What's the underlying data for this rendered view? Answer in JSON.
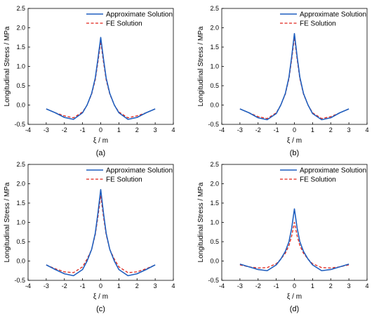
{
  "colors": {
    "approx": "#1f5fbf",
    "fe": "#e0251b",
    "axis": "#000000",
    "background": "#ffffff"
  },
  "chart_data": [
    {
      "type": "line",
      "panel_label": "(a)",
      "xlabel": "ξ / m",
      "ylabel": "Longitudinal Stress / MPa",
      "xlim": [
        -4,
        4
      ],
      "ylim": [
        -0.5,
        2.5
      ],
      "xticks": [
        -4,
        -3,
        -2,
        -1,
        0,
        1,
        2,
        3,
        4
      ],
      "yticks": [
        -0.5,
        0.0,
        0.5,
        1.0,
        1.5,
        2.0,
        2.5
      ],
      "grid": false,
      "legend_position": "top-right",
      "series": [
        {
          "name": "Approximate Solution",
          "style": "solid",
          "x": [
            -3,
            -2.5,
            -2,
            -1.5,
            -1,
            -0.75,
            -0.5,
            -0.3,
            -0.15,
            0,
            0.15,
            0.3,
            0.5,
            0.75,
            1,
            1.5,
            2,
            2.5,
            3
          ],
          "y": [
            -0.1,
            -0.2,
            -0.32,
            -0.37,
            -0.2,
            0.0,
            0.3,
            0.7,
            1.2,
            1.75,
            1.2,
            0.7,
            0.3,
            0.0,
            -0.2,
            -0.37,
            -0.32,
            -0.2,
            -0.1
          ]
        },
        {
          "name": "FE Solution",
          "style": "dashed",
          "x": [
            -3,
            -2.5,
            -2,
            -1.5,
            -1,
            -0.75,
            -0.5,
            -0.3,
            -0.15,
            0,
            0.15,
            0.3,
            0.5,
            0.75,
            1,
            1.5,
            2,
            2.5,
            3
          ],
          "y": [
            -0.1,
            -0.2,
            -0.28,
            -0.33,
            -0.18,
            0.0,
            0.28,
            0.65,
            1.12,
            1.65,
            1.12,
            0.65,
            0.28,
            0.0,
            -0.18,
            -0.33,
            -0.28,
            -0.2,
            -0.1
          ]
        }
      ]
    },
    {
      "type": "line",
      "panel_label": "(b)",
      "xlabel": "ξ / m",
      "ylabel": "Longitudinal Stress / MPa",
      "xlim": [
        -4,
        4
      ],
      "ylim": [
        -0.5,
        2.5
      ],
      "xticks": [
        -4,
        -3,
        -2,
        -1,
        0,
        1,
        2,
        3,
        4
      ],
      "yticks": [
        -0.5,
        0.0,
        0.5,
        1.0,
        1.5,
        2.0,
        2.5
      ],
      "grid": false,
      "legend_position": "top-right",
      "series": [
        {
          "name": "Approximate Solution",
          "style": "solid",
          "x": [
            -3,
            -2.5,
            -2,
            -1.5,
            -1,
            -0.75,
            -0.5,
            -0.3,
            -0.15,
            0,
            0.15,
            0.3,
            0.5,
            0.75,
            1,
            1.5,
            2,
            2.5,
            3
          ],
          "y": [
            -0.1,
            -0.2,
            -0.33,
            -0.38,
            -0.22,
            0.0,
            0.3,
            0.72,
            1.25,
            1.85,
            1.25,
            0.72,
            0.3,
            0.0,
            -0.22,
            -0.38,
            -0.33,
            -0.2,
            -0.1
          ]
        },
        {
          "name": "FE Solution",
          "style": "dashed",
          "x": [
            -3,
            -2.5,
            -2,
            -1.5,
            -1,
            -0.75,
            -0.5,
            -0.3,
            -0.15,
            0,
            0.15,
            0.3,
            0.5,
            0.75,
            1,
            1.5,
            2,
            2.5,
            3
          ],
          "y": [
            -0.1,
            -0.2,
            -0.3,
            -0.35,
            -0.2,
            0.0,
            0.28,
            0.68,
            1.18,
            1.75,
            1.18,
            0.68,
            0.28,
            0.0,
            -0.2,
            -0.35,
            -0.3,
            -0.2,
            -0.1
          ]
        }
      ]
    },
    {
      "type": "line",
      "panel_label": "(c)",
      "xlabel": "ξ / m",
      "ylabel": "Longitudinal Stress / MPa",
      "xlim": [
        -4,
        4
      ],
      "ylim": [
        -0.5,
        2.5
      ],
      "xticks": [
        -4,
        -3,
        -2,
        -1,
        0,
        1,
        2,
        3,
        4
      ],
      "yticks": [
        -0.5,
        0.0,
        0.5,
        1.0,
        1.5,
        2.0,
        2.5
      ],
      "grid": false,
      "legend_position": "top-right",
      "series": [
        {
          "name": "Approximate Solution",
          "style": "solid",
          "x": [
            -3,
            -2.5,
            -2,
            -1.5,
            -1,
            -0.75,
            -0.5,
            -0.3,
            -0.15,
            0,
            0.15,
            0.3,
            0.5,
            0.75,
            1,
            1.5,
            2,
            2.5,
            3
          ],
          "y": [
            -0.1,
            -0.22,
            -0.33,
            -0.38,
            -0.22,
            0.0,
            0.3,
            0.72,
            1.25,
            1.85,
            1.25,
            0.72,
            0.3,
            0.0,
            -0.22,
            -0.38,
            -0.33,
            -0.22,
            -0.1
          ]
        },
        {
          "name": "FE Solution",
          "style": "dashed",
          "x": [
            -3,
            -2.5,
            -2,
            -1.5,
            -1,
            -0.75,
            -0.5,
            -0.3,
            -0.15,
            0,
            0.15,
            0.3,
            0.5,
            0.75,
            1,
            1.5,
            2,
            2.5,
            3
          ],
          "y": [
            -0.1,
            -0.2,
            -0.28,
            -0.3,
            -0.15,
            0.05,
            0.3,
            0.68,
            1.15,
            1.7,
            1.15,
            0.68,
            0.3,
            0.05,
            -0.15,
            -0.3,
            -0.28,
            -0.2,
            -0.1
          ]
        }
      ]
    },
    {
      "type": "line",
      "panel_label": "(d)",
      "xlabel": "ξ / m",
      "ylabel": "Longitudinal Stress / MPa",
      "xlim": [
        -4,
        4
      ],
      "ylim": [
        -0.5,
        2.5
      ],
      "xticks": [
        -4,
        -3,
        -2,
        -1,
        0,
        1,
        2,
        3,
        4
      ],
      "yticks": [
        -0.5,
        0.0,
        0.5,
        1.0,
        1.5,
        2.0,
        2.5
      ],
      "grid": false,
      "legend_position": "top-right",
      "series": [
        {
          "name": "Approximate Solution",
          "style": "solid",
          "x": [
            -3,
            -2.5,
            -2,
            -1.5,
            -1,
            -0.75,
            -0.5,
            -0.3,
            -0.15,
            0,
            0.15,
            0.3,
            0.5,
            0.75,
            1,
            1.5,
            2,
            2.5,
            3
          ],
          "y": [
            -0.08,
            -0.15,
            -0.22,
            -0.25,
            -0.1,
            0.05,
            0.25,
            0.5,
            0.85,
            1.35,
            0.85,
            0.5,
            0.25,
            0.05,
            -0.1,
            -0.25,
            -0.22,
            -0.15,
            -0.08
          ]
        },
        {
          "name": "FE Solution",
          "style": "dashed",
          "x": [
            -3,
            -2.5,
            -2,
            -1.5,
            -1,
            -0.75,
            -0.5,
            -0.3,
            -0.15,
            0,
            0.15,
            0.3,
            0.5,
            0.75,
            1,
            1.5,
            2,
            2.5,
            3
          ],
          "y": [
            -0.1,
            -0.15,
            -0.18,
            -0.17,
            -0.07,
            0.05,
            0.2,
            0.4,
            0.65,
            1.0,
            0.65,
            0.4,
            0.2,
            0.05,
            -0.07,
            -0.17,
            -0.18,
            -0.15,
            -0.1
          ]
        }
      ]
    }
  ]
}
